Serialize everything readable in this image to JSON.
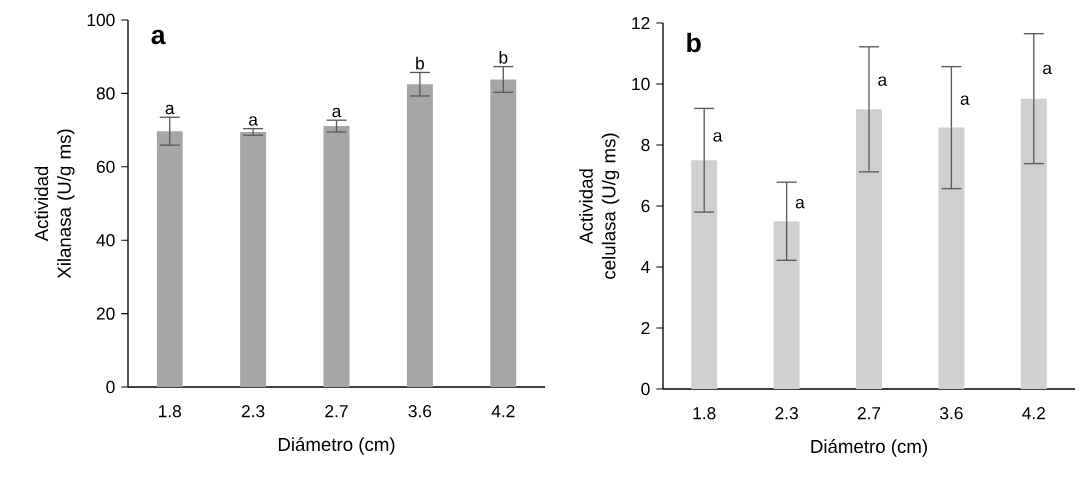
{
  "chart_data": [
    {
      "type": "bar",
      "title": "a",
      "xlabel": "Diámetro (cm)",
      "ylabel": "Actividad Xilanasa (U/g ms)",
      "categories": [
        "1.8",
        "2.3",
        "2.7",
        "3.6",
        "4.2"
      ],
      "values": [
        69.7,
        69.5,
        71.1,
        82.5,
        83.8
      ],
      "errors": [
        3.8,
        0.9,
        1.6,
        3.2,
        3.5
      ],
      "color": "#a6a6a6",
      "ylim": [
        0,
        100
      ],
      "yticks": [
        0,
        20,
        40,
        60,
        80,
        100
      ],
      "annotations": [
        {
          "text": "a",
          "x": "1.8",
          "y": 73.5
        },
        {
          "text": "a",
          "x": "2.3",
          "y": 70.4
        },
        {
          "text": "a",
          "x": "2.7",
          "y": 72.7
        },
        {
          "text": "b",
          "x": "3.6",
          "y": 85.7
        },
        {
          "text": "b",
          "x": "4.2",
          "y": 87.3
        }
      ]
    },
    {
      "type": "bar",
      "title": "b",
      "xlabel": "Diámetro (cm)",
      "ylabel": "Actividad celulasa (U/g ms)",
      "categories": [
        "1.8",
        "2.3",
        "2.7",
        "3.6",
        "4.2"
      ],
      "values": [
        7.5,
        5.5,
        9.17,
        8.57,
        9.52
      ],
      "errors": [
        1.7,
        1.28,
        2.05,
        2.0,
        2.13
      ],
      "color": "#d0d0d0",
      "ylim": [
        0,
        12
      ],
      "yticks": [
        0,
        2,
        4,
        6,
        8,
        10,
        12
      ],
      "annotations": [
        "a",
        "a",
        "a",
        "a",
        "a"
      ]
    }
  ]
}
